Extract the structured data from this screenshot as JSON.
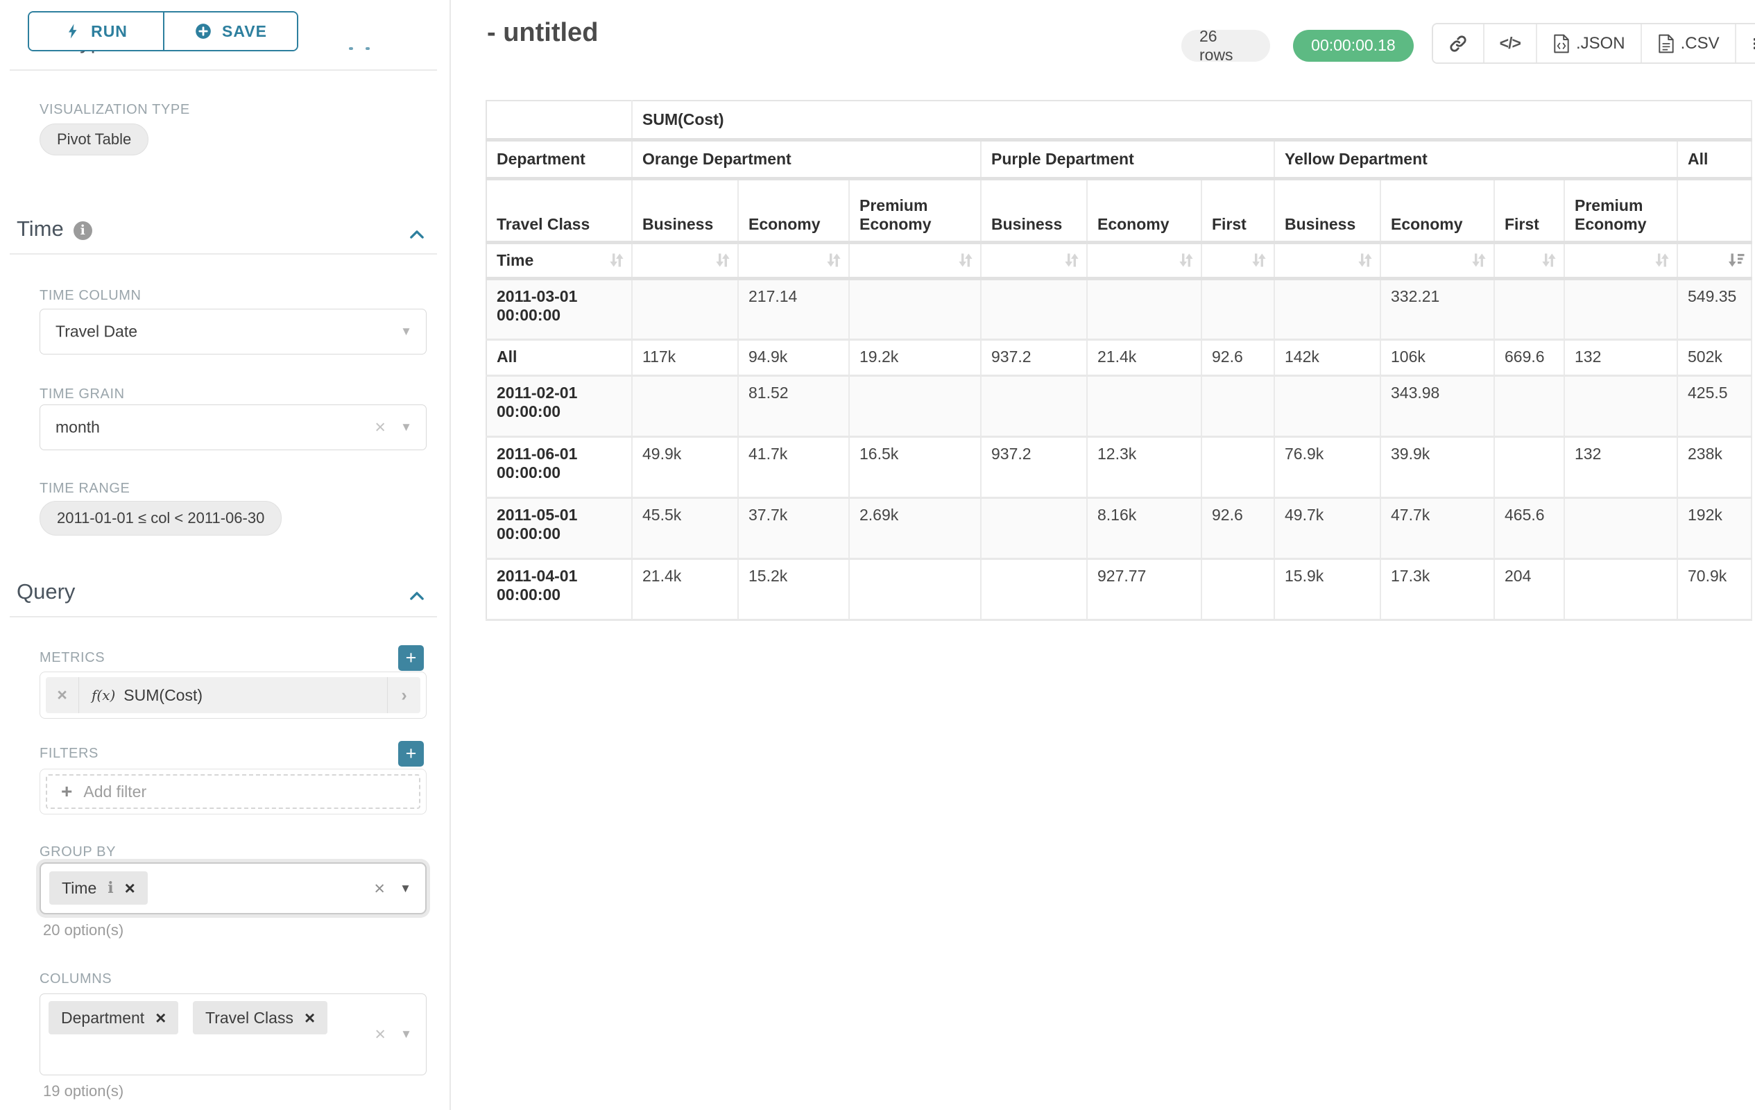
{
  "colors": {
    "accent_teal": "#2d7f9e",
    "success_green": "#5dba83"
  },
  "sidebar": {
    "run_label": "RUN",
    "save_label": "SAVE",
    "chart_type_heading": "Chart Type",
    "visualization_type_label": "VISUALIZATION TYPE",
    "visualization_type_value": "Pivot Table",
    "time": {
      "title": "Time",
      "time_column_label": "TIME COLUMN",
      "time_column_value": "Travel Date",
      "time_grain_label": "TIME GRAIN",
      "time_grain_value": "month",
      "time_range_label": "TIME RANGE",
      "time_range_value": "2011-01-01 ≤ col < 2011-06-30"
    },
    "query": {
      "title": "Query",
      "metrics_label": "METRICS",
      "metric_fx": "f(x)",
      "metric_value": "SUM(Cost)",
      "filters_label": "FILTERS",
      "add_filter_label": "Add filter",
      "group_by_label": "GROUP BY",
      "group_by_value": "Time",
      "group_by_options_hint": "20 option(s)",
      "columns_label": "COLUMNS",
      "columns_values": [
        "Department",
        "Travel Class"
      ],
      "columns_options_hint": "19 option(s)"
    }
  },
  "header": {
    "title": "- untitled",
    "rows_badge": "26 rows",
    "timer_badge": "00:00:00.18",
    "code_icon_glyph": "</>",
    "json_label": ".JSON",
    "csv_label": ".CSV"
  },
  "pivot_table": {
    "metric_label": "SUM(Cost)",
    "department_axis_label": "Department",
    "travel_class_axis_label": "Travel Class",
    "time_axis_label": "Time",
    "column_groups": [
      {
        "department": "Orange Department",
        "classes": [
          "Business",
          "Economy",
          "Premium Economy"
        ]
      },
      {
        "department": "Purple Department",
        "classes": [
          "Business",
          "Economy",
          "First"
        ]
      },
      {
        "department": "Yellow Department",
        "classes": [
          "Business",
          "Economy",
          "First",
          "Premium Economy"
        ]
      },
      {
        "department": "All",
        "classes": [
          ""
        ]
      }
    ],
    "sorted_column": "All",
    "rows": [
      {
        "label": "2011-03-01 00:00:00",
        "values": [
          "",
          "217.14",
          "",
          "",
          "",
          "",
          "",
          "332.21",
          "",
          "",
          "549.35"
        ]
      },
      {
        "label": "All",
        "values": [
          "117k",
          "94.9k",
          "19.2k",
          "937.2",
          "21.4k",
          "92.6",
          "142k",
          "106k",
          "669.6",
          "132",
          "502k"
        ]
      },
      {
        "label": "2011-02-01 00:00:00",
        "values": [
          "",
          "81.52",
          "",
          "",
          "",
          "",
          "",
          "343.98",
          "",
          "",
          "425.5"
        ]
      },
      {
        "label": "2011-06-01 00:00:00",
        "values": [
          "49.9k",
          "41.7k",
          "16.5k",
          "937.2",
          "12.3k",
          "",
          "76.9k",
          "39.9k",
          "",
          "132",
          "238k"
        ]
      },
      {
        "label": "2011-05-01 00:00:00",
        "values": [
          "45.5k",
          "37.7k",
          "2.69k",
          "",
          "8.16k",
          "92.6",
          "49.7k",
          "47.7k",
          "465.6",
          "",
          "192k"
        ]
      },
      {
        "label": "2011-04-01 00:00:00",
        "values": [
          "21.4k",
          "15.2k",
          "",
          "",
          "927.77",
          "",
          "15.9k",
          "17.3k",
          "204",
          "",
          "70.9k"
        ]
      }
    ]
  }
}
